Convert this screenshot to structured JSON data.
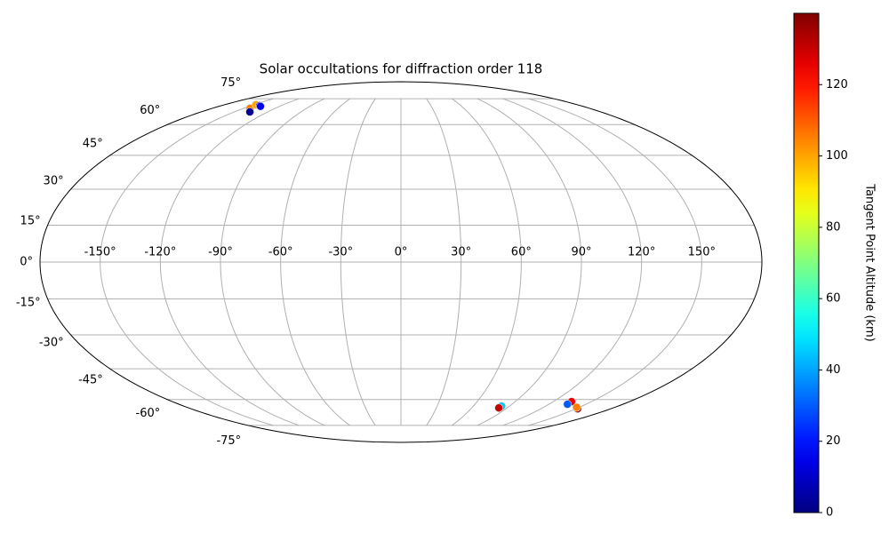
{
  "chart_data": {
    "type": "scatter",
    "projection": "mollweide",
    "title": "Solar occultations for diffraction order 118",
    "x": [
      -144,
      -147.7,
      -141.6,
      -136,
      -139,
      83.4,
      83.0,
      134.4,
      135,
      151.6,
      148
    ],
    "y": [
      69.0,
      71.1,
      70.6,
      66.9,
      70.2,
      -63.5,
      -64.5,
      -61.1,
      -62.5,
      -65.0,
      -64.2
    ],
    "c": [
      105,
      100,
      5,
      3,
      15,
      45,
      130,
      125,
      30,
      135,
      105
    ],
    "colormap": "jet",
    "clim": [
      0,
      140
    ],
    "cticks": [
      0,
      20,
      40,
      60,
      80,
      100,
      120
    ],
    "colorbar_label": "Tangent Point Altitude (km)",
    "xlim": [
      -180,
      180
    ],
    "ylim": [
      -90,
      90
    ],
    "xticks": [
      {
        "value": -150,
        "label": "-150°"
      },
      {
        "value": -120,
        "label": "-120°"
      },
      {
        "value": -90,
        "label": "-90°"
      },
      {
        "value": -60,
        "label": "-60°"
      },
      {
        "value": -30,
        "label": "-30°"
      },
      {
        "value": 0,
        "label": "0°"
      },
      {
        "value": 30,
        "label": "30°"
      },
      {
        "value": 60,
        "label": "60°"
      },
      {
        "value": 90,
        "label": "90°"
      },
      {
        "value": 120,
        "label": "120°"
      },
      {
        "value": 150,
        "label": "150°"
      }
    ],
    "yticks": [
      {
        "value": -75,
        "label": "-75°"
      },
      {
        "value": -60,
        "label": "-60°"
      },
      {
        "value": -45,
        "label": "-45°"
      },
      {
        "value": -30,
        "label": "-30°"
      },
      {
        "value": -15,
        "label": "-15°"
      },
      {
        "value": 0,
        "label": "0°"
      },
      {
        "value": 15,
        "label": "15°"
      },
      {
        "value": 30,
        "label": "30°"
      },
      {
        "value": 45,
        "label": "45°"
      },
      {
        "value": 60,
        "label": "60°"
      },
      {
        "value": 75,
        "label": "75°"
      }
    ],
    "grid": true
  }
}
